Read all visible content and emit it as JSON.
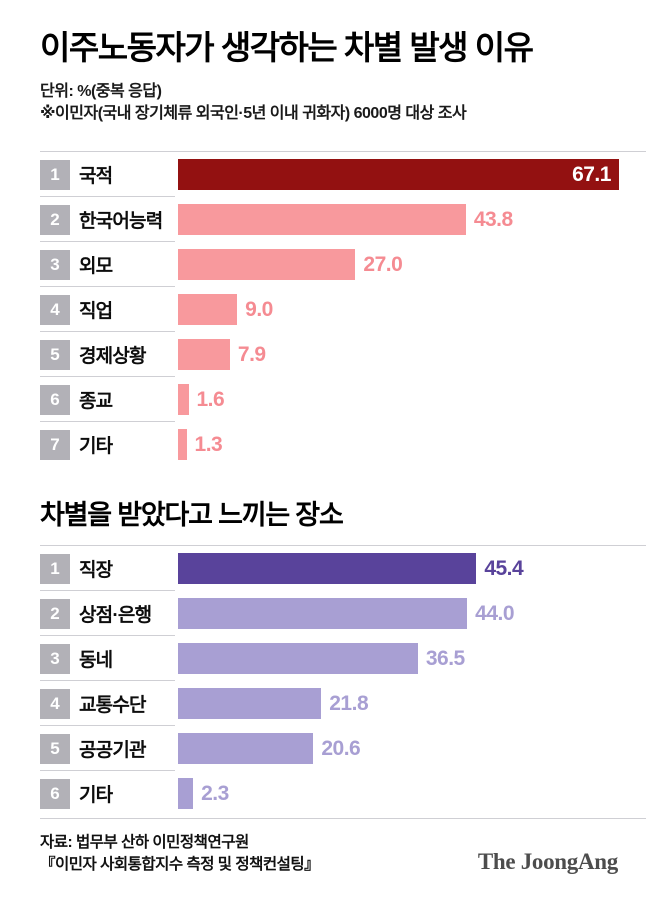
{
  "header": {
    "title": "이주노동자가 생각하는 차별 발생 이유",
    "unit_note": "단위: %(중복 응답)",
    "survey_note": "※이민자(국내 장기체류 외국인·5년 이내 귀화자) 6000명 대상 조사"
  },
  "colors": {
    "highlight_red": "#931111",
    "pink": "#f8999d",
    "pink_text": "#f58b92",
    "highlight_purple": "#59439b",
    "light_purple": "#a89fd3",
    "rank_badge_gray": "#b2b1b7",
    "rule_gray": "#cfcfd4",
    "logo_gray": "#4d4d4d"
  },
  "chart_data": [
    {
      "type": "bar",
      "orientation": "horizontal",
      "title": "이주노동자가 생각하는 차별 발생 이유",
      "unit": "%(중복 응답)",
      "categories": [
        "국적",
        "한국어능력",
        "외모",
        "직업",
        "경제상황",
        "종교",
        "기타"
      ],
      "values": [
        67.1,
        43.8,
        27.0,
        9.0,
        7.9,
        1.6,
        1.3
      ],
      "ranks": [
        1,
        2,
        3,
        4,
        5,
        6,
        7
      ],
      "xlim": [
        0,
        70
      ],
      "grid": false,
      "legend": false,
      "value_labels": true,
      "highlight_index": 0,
      "style": {
        "bar_color": "#f8999d",
        "highlight_bar_color": "#931111",
        "value_color": "#f58b92",
        "highlight_value_color": "#ffffff",
        "highlight_value_inside": true
      }
    },
    {
      "type": "bar",
      "orientation": "horizontal",
      "title": "차별을 받았다고 느끼는 장소",
      "unit": "%(중복 응답)",
      "categories": [
        "직장",
        "상점·은행",
        "동네",
        "교통수단",
        "공공기관",
        "기타"
      ],
      "values": [
        45.4,
        44.0,
        36.5,
        21.8,
        20.6,
        2.3
      ],
      "ranks": [
        1,
        2,
        3,
        4,
        5,
        6
      ],
      "xlim": [
        0,
        70
      ],
      "grid": false,
      "legend": false,
      "value_labels": true,
      "highlight_index": 0,
      "style": {
        "bar_color": "#a89fd3",
        "highlight_bar_color": "#59439b",
        "value_color": "#a89fd3",
        "highlight_value_color": "#59439b",
        "highlight_value_inside": false
      }
    }
  ],
  "footer": {
    "source_line1": "자료: 법무부 산하 이민정책연구원",
    "source_line2": "『이민자 사회통합지수 측정 및 정책컨설팅』",
    "logo": "The JoongAng"
  }
}
